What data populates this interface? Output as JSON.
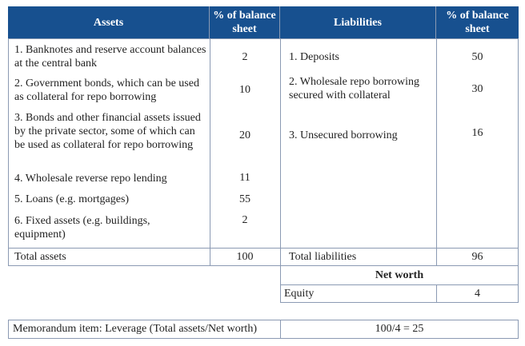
{
  "table": {
    "header": [
      "Assets",
      "% of balance sheet",
      "Liabilities",
      "% of balance sheet"
    ],
    "assets": [
      {
        "label": "1. Banknotes and reserve account balances at the central bank",
        "value": 2
      },
      {
        "label": "2. Government bonds, which can be used as collateral for repo borrowing",
        "value": 10
      },
      {
        "label": "3. Bonds and other financial assets issued by the private sector, some of which can be used as collateral for repo borrowing",
        "value": 20
      },
      {
        "label": "4. Wholesale reverse repo lending",
        "value": 11
      },
      {
        "label": "5. Loans (e.g. mortgages)",
        "value": 55
      },
      {
        "label": "6. Fixed assets (e.g. buildings, equipment)",
        "value": 2
      }
    ],
    "liabilities": [
      {
        "label": "1. Deposits",
        "value": 50
      },
      {
        "label": "2. Wholesale repo borrowing secured with collateral",
        "value": 30
      },
      {
        "label": "3. Unsecured borrowing",
        "value": 16
      }
    ],
    "total_assets": {
      "label": "Total assets",
      "value": 100
    },
    "total_liabilities": {
      "label": "Total liabilities",
      "value": 96
    },
    "net_worth": {
      "title": "Net worth",
      "label": "Equity",
      "value": 4
    },
    "memorandum": {
      "label": "Memorandum item: Leverage (Total assets/Net worth)",
      "value": "100/4 = 25"
    }
  }
}
